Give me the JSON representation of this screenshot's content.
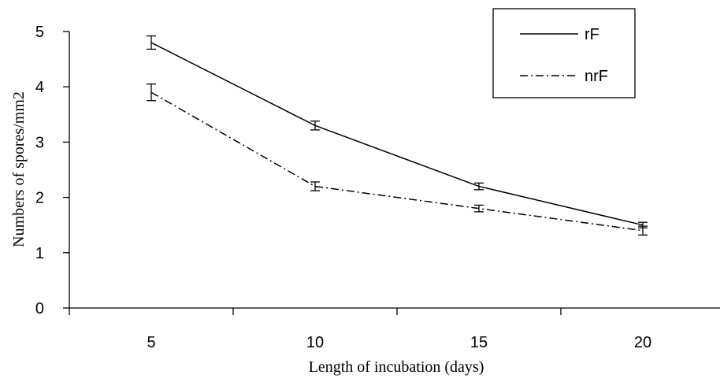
{
  "chart_data": {
    "type": "line",
    "title": "",
    "xlabel": "Length of incubation (days)",
    "ylabel": "Numbers of spores/mm2",
    "x": [
      5,
      10,
      15,
      20
    ],
    "x_tick_labels": [
      "5",
      "10",
      "15",
      "20"
    ],
    "ylim": [
      0,
      5
    ],
    "y_ticks": [
      0,
      1,
      2,
      3,
      4,
      5
    ],
    "y_tick_labels": [
      "0",
      "1",
      "2",
      "3",
      "4",
      "5"
    ],
    "grid": false,
    "legend_position": "top-right",
    "series": [
      {
        "name": "rF",
        "line_style": "solid",
        "values": [
          4.8,
          3.3,
          2.2,
          1.5
        ],
        "errors": [
          0.12,
          0.08,
          0.06,
          0.05
        ]
      },
      {
        "name": "nrF",
        "line_style": "dash-dot",
        "values": [
          3.9,
          2.2,
          1.8,
          1.4
        ],
        "errors": [
          0.15,
          0.08,
          0.06,
          0.08
        ]
      }
    ]
  }
}
